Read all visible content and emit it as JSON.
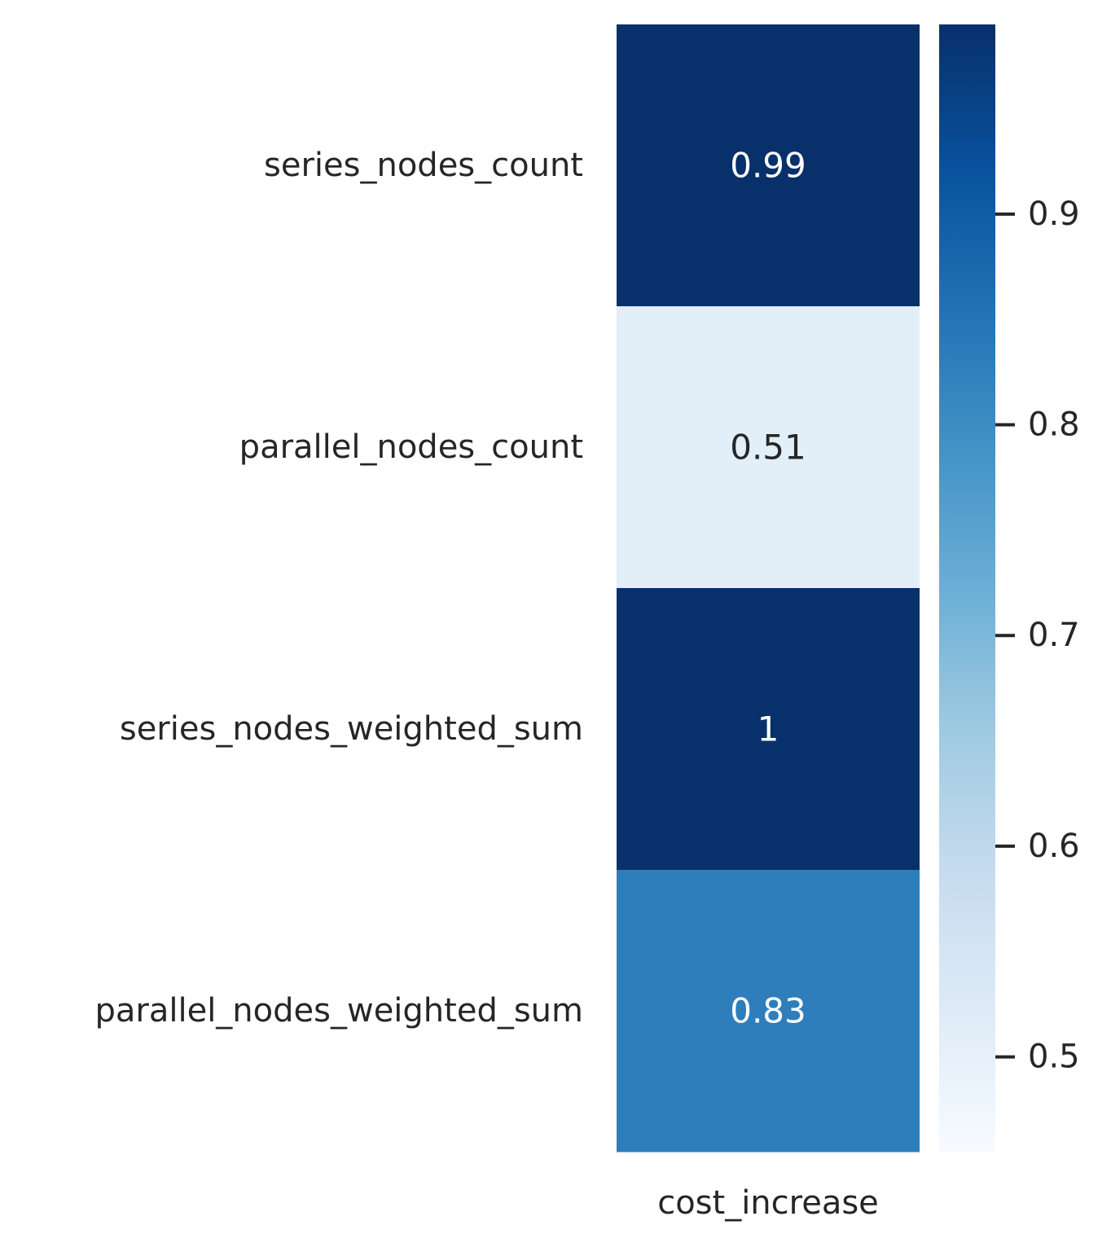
{
  "chart_data": {
    "type": "heatmap",
    "rows": [
      "series_nodes_count",
      "parallel_nodes_count",
      "series_nodes_weighted_sum",
      "parallel_nodes_weighted_sum"
    ],
    "columns": [
      "cost_increase"
    ],
    "values": [
      [
        0.99
      ],
      [
        0.51
      ],
      [
        1.0
      ],
      [
        0.83
      ]
    ],
    "cell_labels": [
      [
        "0.99"
      ],
      [
        "0.51"
      ],
      [
        "1"
      ],
      [
        "0.83"
      ]
    ],
    "colormap": "Blues",
    "colorbar": {
      "range": [
        0.455,
        0.99
      ],
      "ticks": [
        0.5,
        0.6,
        0.7,
        0.8,
        0.9
      ],
      "tick_labels": [
        "0.5",
        "0.6",
        "0.7",
        "0.8",
        "0.9"
      ]
    },
    "colors": {
      "text_dark": "#262626",
      "text_light": "#ffffff"
    }
  }
}
